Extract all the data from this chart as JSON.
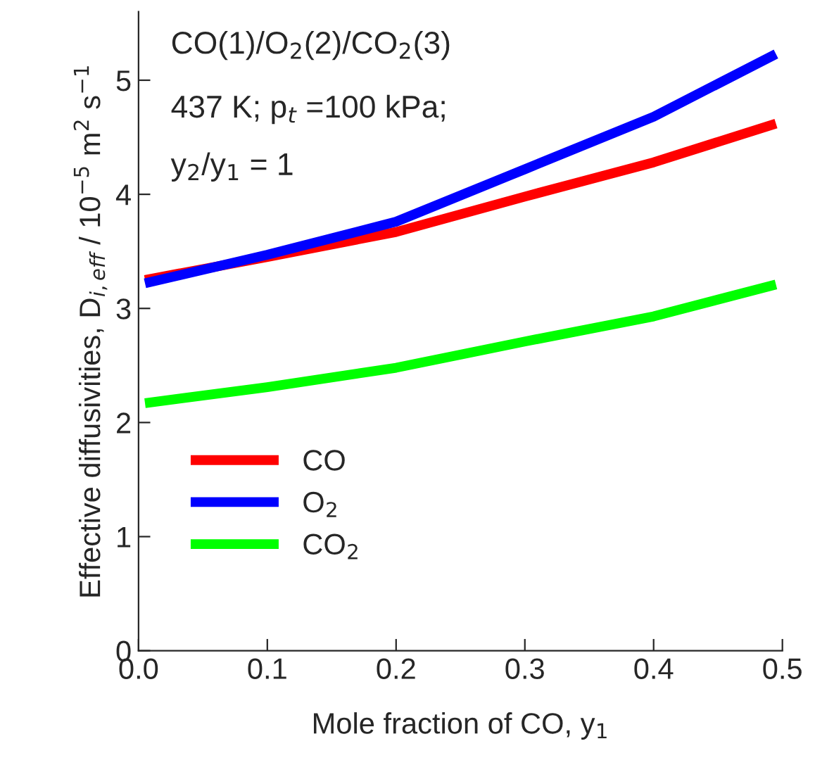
{
  "chart_data": {
    "type": "line",
    "xlabel": "Mole fraction of CO, y$_{1}$",
    "ylabel": "Effective diffusivities, D$_{i,eff}$ / 10$^{−5}$ m$^{2}$ s$^{−1}$",
    "x": [
      0.005,
      0.1,
      0.2,
      0.3,
      0.4,
      0.495
    ],
    "series": [
      {
        "name": "CO",
        "color": "#ff0000",
        "values": [
          3.25,
          3.45,
          3.67,
          3.98,
          4.28,
          4.62
        ]
      },
      {
        "name": "O$_{2}$",
        "color": "#0000ff",
        "values": [
          3.22,
          3.47,
          3.76,
          4.22,
          4.68,
          5.23
        ]
      },
      {
        "name": "CO$_{2}$",
        "color": "#00ff00",
        "values": [
          2.17,
          2.31,
          2.48,
          2.71,
          2.93,
          3.21
        ]
      }
    ],
    "annotations": [
      "CO(1)/O$_{2}$(2)/CO$_{2}$(3)",
      "437 K; p$_{t}$ =100 kPa;",
      "y$_{2}$/y$_{1}$ = 1"
    ],
    "xlim": [
      0,
      0.5
    ],
    "xticks": [
      {
        "value": 0,
        "label": "0.0"
      },
      0.1,
      0.2,
      0.3,
      0.4,
      0.5
    ],
    "ylim": [
      0,
      5.6
    ],
    "yticks": [
      0,
      1,
      2,
      3,
      4,
      5
    ],
    "grid": false,
    "legend": "bottom left",
    "marker": "none",
    "line_style": "solid"
  }
}
